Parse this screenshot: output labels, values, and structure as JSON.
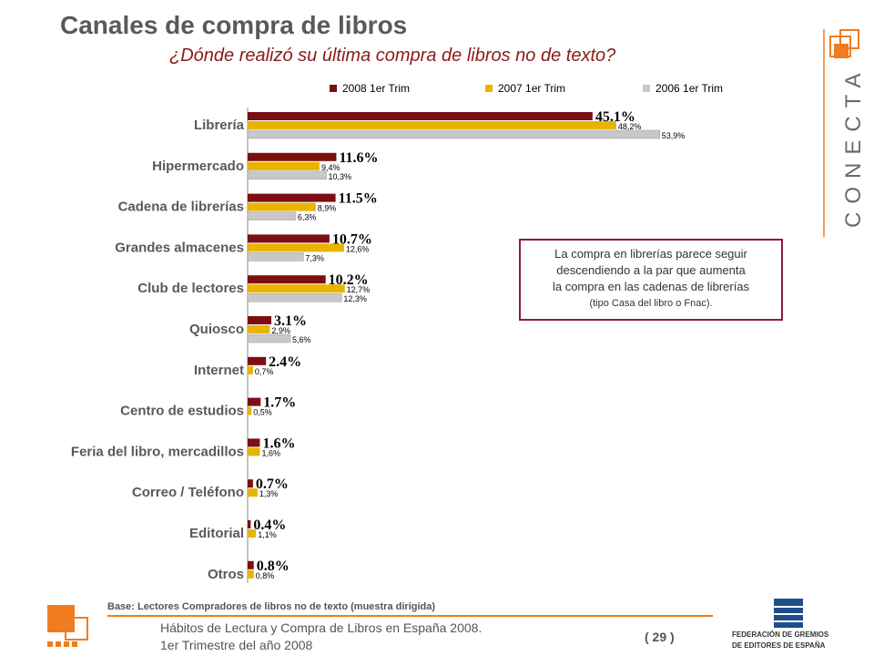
{
  "title": "Canales de compra de libros",
  "subtitle": "¿Dónde realizó su última compra de libros no de texto?",
  "chart_data": {
    "type": "bar",
    "orientation": "horizontal",
    "categories": [
      "Librería",
      "Hipermercado",
      "Cadena de librerías",
      "Grandes almacenes",
      "Club de lectores",
      "Quiosco",
      "Internet",
      "Centro de estudios",
      "Feria del libro, mercadillos",
      "Correo / Teléfono",
      "Editorial",
      "Otros"
    ],
    "series": [
      {
        "name": "2008 1er Trim",
        "color": "#7b0f12",
        "values": [
          45.1,
          11.6,
          11.5,
          10.7,
          10.2,
          3.1,
          2.4,
          1.7,
          1.6,
          0.7,
          0.4,
          0.8
        ],
        "labels": [
          "45.1%",
          "11.6%",
          "11.5%",
          "10.7%",
          "10.2%",
          "3.1%",
          "2.4%",
          "1.7%",
          "1.6%",
          "0.7%",
          "0.4%",
          "0.8%"
        ]
      },
      {
        "name": "2007 1er Trim",
        "color": "#e8b400",
        "values": [
          48.2,
          9.4,
          8.9,
          12.6,
          12.7,
          2.9,
          0.7,
          0.5,
          1.6,
          1.3,
          1.1,
          0.8
        ],
        "labels": [
          "48,2%",
          "9,4%",
          "8,9%",
          "12,6%",
          "12,7%",
          "2,9%",
          "0,7%",
          "0,5%",
          "1,6%",
          "1,3%",
          "1,1%",
          "0,8%"
        ]
      },
      {
        "name": "2006 1er Trim",
        "color": "#c8c8c8",
        "values": [
          53.9,
          10.3,
          6.3,
          7.3,
          12.3,
          5.6,
          null,
          null,
          null,
          null,
          null,
          null
        ],
        "labels": [
          "53,9%",
          "10,3%",
          "6,3%",
          "7,3%",
          "12,3%",
          "5,6%",
          "",
          "",
          "",
          "",
          "",
          ""
        ]
      }
    ],
    "legend_position": "top",
    "grid": false
  },
  "callout": {
    "line1": "La compra en librerías parece seguir",
    "line2": "descendiendo a la par que aumenta",
    "line3": "la compra en las  cadenas de librerías",
    "line4": "(tipo Casa del libro o Fnac)."
  },
  "base_note": "Base:  Lectores  Compradores  de libros no de texto  (muestra dirigida)",
  "footer": {
    "line1": "Hábitos de Lectura y Compra de Libros en España 2008.",
    "line2": "1er Trimestre del año 2008",
    "page": "( 29 )"
  },
  "brand": {
    "conecta": "CONECTA",
    "federation_line1": "FEDERACIÓN DE GREMIOS",
    "federation_line2": "DE EDITORES DE ESPAÑA"
  },
  "colors": {
    "accent": "#f07c1f",
    "title": "#595959",
    "subtitle": "#8b1a1a",
    "callout_border": "#8b1a3a"
  }
}
